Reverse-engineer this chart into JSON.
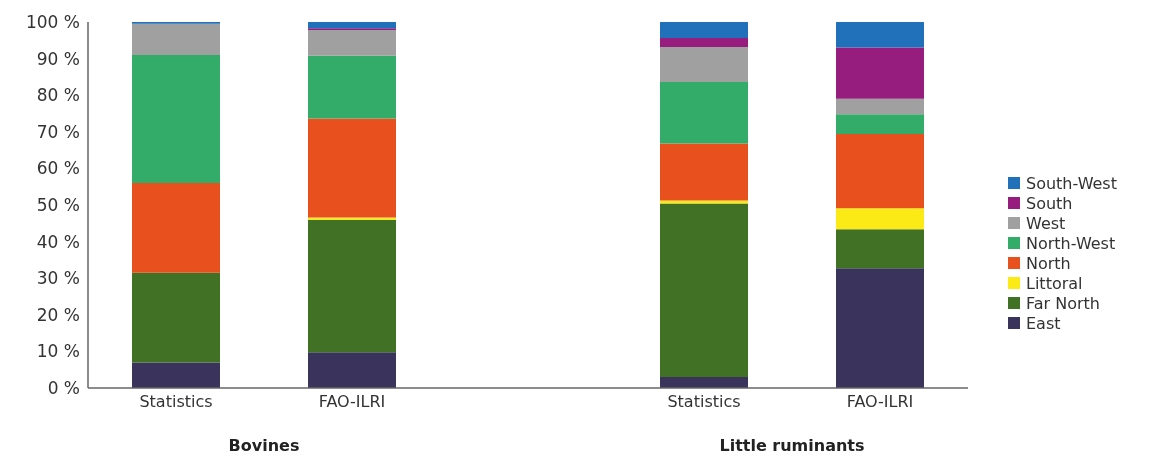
{
  "chart_data": {
    "type": "bar",
    "stacked": true,
    "categories": [
      "Statistics",
      "FAO-ILRI",
      null,
      "Statistics",
      "FAO-ILRI"
    ],
    "series": [
      {
        "name": "East",
        "color": "#3a345c",
        "values": [
          7,
          9.8,
          null,
          3,
          32.7
        ]
      },
      {
        "name": "Far North",
        "color": "#417124",
        "values": [
          24.5,
          36.2,
          null,
          47.4,
          10.7
        ]
      },
      {
        "name": "Littoral",
        "color": "#fbea15",
        "values": [
          0,
          0.6,
          null,
          0.8,
          5.7
        ]
      },
      {
        "name": "North",
        "color": "#e8501e",
        "values": [
          24.5,
          27,
          null,
          15.6,
          20.3
        ]
      },
      {
        "name": "North-West",
        "color": "#33ab69",
        "values": [
          35,
          17.2,
          null,
          16.8,
          5.4
        ]
      },
      {
        "name": "West",
        "color": "#a0a0a0",
        "values": [
          8.5,
          7,
          null,
          9.6,
          4.2
        ]
      },
      {
        "name": "South",
        "color": "#961d7e",
        "values": [
          0,
          0.5,
          null,
          2.4,
          14
        ]
      },
      {
        "name": "South-West",
        "color": "#2071b9",
        "values": [
          0.5,
          1.7,
          null,
          4.4,
          7
        ]
      }
    ],
    "ylim": [
      0,
      100
    ],
    "yticks": [
      {
        "value": 0,
        "label": "0 %"
      },
      {
        "value": 10,
        "label": "10 %"
      },
      {
        "value": 20,
        "label": "20 %"
      },
      {
        "value": 30,
        "label": "30 %"
      },
      {
        "value": 40,
        "label": "40 %"
      },
      {
        "value": 50,
        "label": "50 %"
      },
      {
        "value": 60,
        "label": "60 %"
      },
      {
        "value": 70,
        "label": "70 %"
      },
      {
        "value": 80,
        "label": "80 %"
      },
      {
        "value": 90,
        "label": "90 %"
      },
      {
        "value": 100,
        "label": "100 %"
      }
    ],
    "annotations": [
      "Bovines",
      "Little ruminants"
    ],
    "legend": "right",
    "grid": false
  }
}
